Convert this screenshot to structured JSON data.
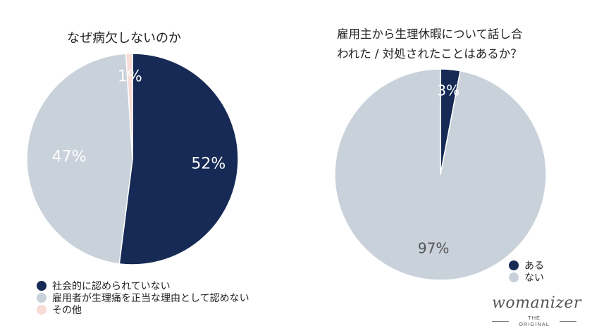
{
  "chart_data": [
    {
      "type": "pie",
      "title": "なぜ病欠しないのか",
      "categories": [
        "社会的に認められていない",
        "雇用者が生理痛を正当な理由として認めない",
        "その他"
      ],
      "values": [
        52,
        47,
        1
      ],
      "labels": [
        "52%",
        "47%",
        "1%"
      ],
      "colors": [
        "#162a55",
        "#c9d1da",
        "#f8dcd6"
      ],
      "label_colors": [
        "#ffffff",
        "#ffffff",
        "#ffffff"
      ],
      "legend_position": "bottom-left"
    },
    {
      "type": "pie",
      "title_lines": [
        "雇用主から生理休暇について話し合",
        "われた / 対処されたことはあるか？"
      ],
      "categories": [
        "ある",
        "ない"
      ],
      "values": [
        3,
        97
      ],
      "labels": [
        "3%",
        "97%"
      ],
      "colors": [
        "#162a55",
        "#c9d1da"
      ],
      "label_colors": [
        "#ffffff",
        "#555555"
      ],
      "legend_position": "bottom-right"
    }
  ],
  "logo": {
    "brand": "womanizer",
    "tagline": "THE ORIGINAL"
  }
}
